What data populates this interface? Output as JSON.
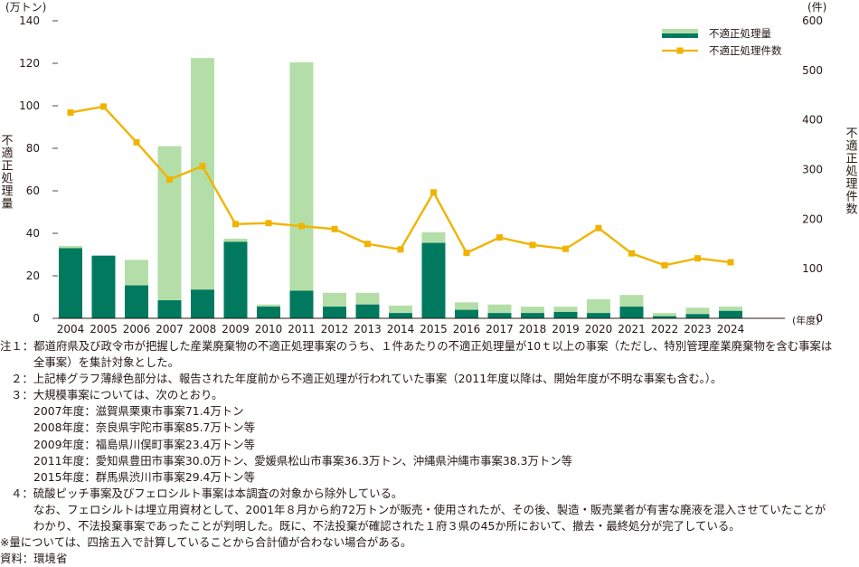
{
  "chart_data": {
    "type": "bar+line",
    "x_unit": "(年度)",
    "categories": [
      "2004",
      "2005",
      "2006",
      "2007",
      "2008",
      "2009",
      "2010",
      "2011",
      "2012",
      "2013",
      "2014",
      "2015",
      "2016",
      "2017",
      "2018",
      "2019",
      "2020",
      "2021",
      "2022",
      "2023",
      "2024"
    ],
    "left_axis": {
      "unit": "(万トン)",
      "label": "不適正処理量",
      "ylim": [
        0,
        140
      ],
      "ticks": [
        "0",
        "20",
        "40",
        "60",
        "80",
        "100",
        "120",
        "140"
      ]
    },
    "right_axis": {
      "unit": "(件)",
      "label": "不適正処理件数",
      "ylim": [
        0,
        600
      ],
      "ticks": [
        "0",
        "100",
        "200",
        "300",
        "400",
        "500",
        "600"
      ]
    },
    "legend": {
      "position": "top-right",
      "bar_label": "不適正処理量",
      "line_label": "不適正処理件数"
    },
    "series": [
      {
        "name": "不適正処理量",
        "kind": "stacked_bar",
        "axis": "left",
        "color": "#00795f",
        "values": [
          33,
          29.5,
          15.5,
          8.5,
          13.5,
          36,
          5.5,
          13,
          5.5,
          6.5,
          2.5,
          35.5,
          4,
          2.5,
          2.5,
          3,
          2.5,
          5.5,
          1,
          2,
          3.5
        ]
      },
      {
        "name": "",
        "kind": "stacked_bar_top",
        "axis": "left",
        "color": "#b4dea7",
        "values": [
          1,
          0,
          12,
          72.5,
          109,
          1.5,
          1,
          107.5,
          6.5,
          5.5,
          3.5,
          5,
          3.5,
          4,
          3,
          2.5,
          6.5,
          5.5,
          1.5,
          3,
          2
        ]
      },
      {
        "name": "不適正処理件数",
        "kind": "line",
        "axis": "right",
        "color": "#f0b400",
        "values": [
          415,
          427,
          355,
          280,
          307,
          190,
          192,
          186,
          180,
          150,
          139,
          254,
          132,
          163,
          148,
          140,
          182,
          131,
          107,
          121,
          113
        ]
      }
    ]
  },
  "notes": [
    "注１：都道府県及び政令市が把握した産業廃棄物の不適正処理事案のうち、１件あたりの不適正処理量が10ｔ以上の事案（ただし、特別管理産業廃棄物を含む事案は",
    "全事案）を集計対象とした。",
    "２：上記棒グラフ薄緑色部分は、報告された年度前から不適正処理が行われていた事案（2011年度以降は、開始年度が不明な事案も含む。）。",
    "３：大規模事案については、次のとおり。",
    "2007年度：滋賀県栗東市事案71.4万トン",
    "2008年度：奈良県宇陀市事案85.7万トン等",
    "2009年度：福島県川俣町事案23.4万トン等",
    "2011年度：愛知県豊田市事案30.0万トン、愛媛県松山市事案36.3万トン、沖縄県沖縄市事案38.3万トン等",
    "2015年度：群馬県渋川市事案29.4万トン等",
    "４：硫酸ピッチ事案及びフェロシルト事案は本調査の対象から除外している。",
    "なお、フェロシルトは埋立用資材として、2001年８月から約72万トンが販売・使用されたが、その後、製造・販売業者が有害な廃液を混入させていたことが",
    "わかり、不法投棄事案であったことが判明した。既に、不法投棄が確認された１府３県の45か所において、撤去・最終処分が完了している。",
    "※量については、四捨五入で計算していることから合計値が合わない場合がある。",
    "資料：環境省"
  ]
}
